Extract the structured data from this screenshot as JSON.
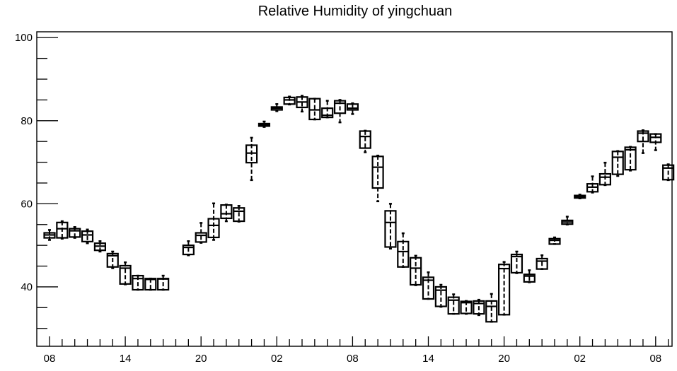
{
  "chart_data": {
    "type": "box",
    "title": "Relative Humidity of yingchuan",
    "xlabel": "",
    "ylabel": "",
    "ylim": [
      25.7,
      101.4
    ],
    "grid": false,
    "legend": "none",
    "x_tick_labels": [
      "08",
      "14",
      "20",
      "02",
      "08",
      "14",
      "20",
      "02",
      "08"
    ],
    "y_tick_labels": [
      "40",
      "60",
      "80",
      "100"
    ],
    "y_tick_values": [
      40,
      60,
      80,
      100
    ],
    "series": [
      {
        "boxes": [
          {
            "x": 0,
            "q1": 51.8,
            "median": 52.5,
            "q3": 53.0,
            "lo": 51.3,
            "hi": 53.7
          },
          {
            "x": 1,
            "q1": 51.8,
            "median": 54.0,
            "q3": 55.5,
            "lo": 51.6,
            "hi": 55.8
          },
          {
            "x": 2,
            "q1": 52.0,
            "median": 53.5,
            "q3": 54.0,
            "lo": 51.8,
            "hi": 54.4
          },
          {
            "x": 3,
            "q1": 50.9,
            "median": 52.5,
            "q3": 53.4,
            "lo": 50.5,
            "hi": 53.8
          },
          {
            "x": 4,
            "q1": 48.8,
            "median": 49.8,
            "q3": 50.5,
            "lo": 48.5,
            "hi": 51.0
          },
          {
            "x": 5,
            "q1": 44.8,
            "median": 47.5,
            "q3": 48.0,
            "lo": 44.5,
            "hi": 48.5
          },
          {
            "x": 6,
            "q1": 40.7,
            "median": 44.5,
            "q3": 45.1,
            "lo": 40.6,
            "hi": 45.9
          },
          {
            "x": 7,
            "q1": 39.3,
            "median": 42.0,
            "q3": 42.7,
            "lo": 39.3,
            "hi": 42.7
          },
          {
            "x": 8,
            "q1": 39.3,
            "median": 41.8,
            "q3": 42.0,
            "lo": 39.3,
            "hi": 42.0
          },
          {
            "x": 9,
            "q1": 39.3,
            "median": 41.9,
            "q3": 42.0,
            "lo": 39.3,
            "hi": 42.7
          },
          {
            "x": 11,
            "q1": 47.8,
            "median": 49.5,
            "q3": 50.0,
            "lo": 47.6,
            "hi": 51.0
          },
          {
            "x": 12,
            "q1": 50.8,
            "median": 52.4,
            "q3": 53.0,
            "lo": 50.6,
            "hi": 55.4
          },
          {
            "x": 13,
            "q1": 51.9,
            "median": 54.8,
            "q3": 56.4,
            "lo": 51.3,
            "hi": 60.1
          },
          {
            "x": 14,
            "q1": 56.5,
            "median": 57.6,
            "q3": 59.7,
            "lo": 55.8,
            "hi": 59.8
          },
          {
            "x": 15,
            "q1": 55.8,
            "median": 58.2,
            "q3": 59.0,
            "lo": 55.7,
            "hi": 59.5
          },
          {
            "x": 16,
            "q1": 69.9,
            "median": 72.2,
            "q3": 74.1,
            "lo": 65.7,
            "hi": 75.9
          },
          {
            "x": 17,
            "q1": 78.7,
            "median": 79.0,
            "q3": 79.3,
            "lo": 78.5,
            "hi": 79.8
          },
          {
            "x": 18,
            "q1": 82.6,
            "median": 83.0,
            "q3": 83.3,
            "lo": 82.3,
            "hi": 84.0
          },
          {
            "x": 19,
            "q1": 84.0,
            "median": 85.0,
            "q3": 85.6,
            "lo": 83.9,
            "hi": 85.8
          },
          {
            "x": 20,
            "q1": 83.2,
            "median": 84.5,
            "q3": 85.7,
            "lo": 82.2,
            "hi": 86.0
          },
          {
            "x": 21,
            "q1": 80.3,
            "median": 82.6,
            "q3": 85.3,
            "lo": 80.3,
            "hi": 85.3
          },
          {
            "x": 22,
            "q1": 80.8,
            "median": 81.3,
            "q3": 83.0,
            "lo": 80.8,
            "hi": 84.8
          },
          {
            "x": 23,
            "q1": 81.8,
            "median": 84.2,
            "q3": 84.8,
            "lo": 79.6,
            "hi": 85.0
          },
          {
            "x": 24,
            "q1": 82.6,
            "median": 83.0,
            "q3": 84.0,
            "lo": 81.6,
            "hi": 84.2
          },
          {
            "x": 25,
            "q1": 73.4,
            "median": 76.2,
            "q3": 77.5,
            "lo": 72.4,
            "hi": 77.6
          },
          {
            "x": 26,
            "q1": 63.8,
            "median": 68.8,
            "q3": 71.4,
            "lo": 60.6,
            "hi": 71.6
          },
          {
            "x": 27,
            "q1": 49.6,
            "median": 55.5,
            "q3": 58.3,
            "lo": 49.2,
            "hi": 60.0
          },
          {
            "x": 28,
            "q1": 44.8,
            "median": 48.5,
            "q3": 50.9,
            "lo": 44.8,
            "hi": 52.9
          },
          {
            "x": 29,
            "q1": 40.5,
            "median": 44.5,
            "q3": 47.0,
            "lo": 40.4,
            "hi": 47.5
          },
          {
            "x": 30,
            "q1": 37.1,
            "median": 41.6,
            "q3": 42.3,
            "lo": 37.1,
            "hi": 43.5
          },
          {
            "x": 31,
            "q1": 35.3,
            "median": 39.2,
            "q3": 40.0,
            "lo": 35.2,
            "hi": 40.5
          },
          {
            "x": 32,
            "q1": 33.5,
            "median": 36.8,
            "q3": 37.5,
            "lo": 33.5,
            "hi": 38.2
          },
          {
            "x": 33,
            "q1": 33.6,
            "median": 36.2,
            "q3": 36.5,
            "lo": 33.5,
            "hi": 36.6
          },
          {
            "x": 34,
            "q1": 33.5,
            "median": 36.0,
            "q3": 36.6,
            "lo": 33.2,
            "hi": 36.9
          },
          {
            "x": 35,
            "q1": 31.6,
            "median": 35.3,
            "q3": 36.6,
            "lo": 31.6,
            "hi": 38.3
          },
          {
            "x": 36,
            "q1": 33.3,
            "median": 44.4,
            "q3": 45.4,
            "lo": 33.3,
            "hi": 46.0
          },
          {
            "x": 37,
            "q1": 43.4,
            "median": 47.3,
            "q3": 47.8,
            "lo": 43.3,
            "hi": 48.5
          },
          {
            "x": 38,
            "q1": 41.2,
            "median": 42.6,
            "q3": 43.0,
            "lo": 41.1,
            "hi": 44.0
          },
          {
            "x": 39,
            "q1": 44.3,
            "median": 46.2,
            "q3": 46.8,
            "lo": 44.3,
            "hi": 47.6
          },
          {
            "x": 40,
            "q1": 50.3,
            "median": 51.2,
            "q3": 51.6,
            "lo": 50.3,
            "hi": 51.9
          },
          {
            "x": 41,
            "q1": 55.1,
            "median": 55.6,
            "q3": 56.0,
            "lo": 55.0,
            "hi": 56.9
          },
          {
            "x": 42,
            "q1": 61.4,
            "median": 61.7,
            "q3": 62.0,
            "lo": 61.3,
            "hi": 62.2
          },
          {
            "x": 43,
            "q1": 62.9,
            "median": 64.0,
            "q3": 64.8,
            "lo": 62.7,
            "hi": 66.6
          },
          {
            "x": 44,
            "q1": 64.6,
            "median": 66.4,
            "q3": 67.2,
            "lo": 64.5,
            "hi": 69.9
          },
          {
            "x": 45,
            "q1": 67.1,
            "median": 71.2,
            "q3": 72.6,
            "lo": 66.7,
            "hi": 72.7
          },
          {
            "x": 46,
            "q1": 68.2,
            "median": 73.0,
            "q3": 73.6,
            "lo": 68.0,
            "hi": 73.7
          },
          {
            "x": 47,
            "q1": 75.0,
            "median": 77.0,
            "q3": 77.5,
            "lo": 72.2,
            "hi": 77.7
          },
          {
            "x": 48,
            "q1": 74.8,
            "median": 76.0,
            "q3": 76.8,
            "lo": 72.9,
            "hi": 76.8
          },
          {
            "x": 49,
            "q1": 65.8,
            "median": 68.6,
            "q3": 69.3,
            "lo": 65.7,
            "hi": 69.5
          }
        ]
      }
    ]
  }
}
